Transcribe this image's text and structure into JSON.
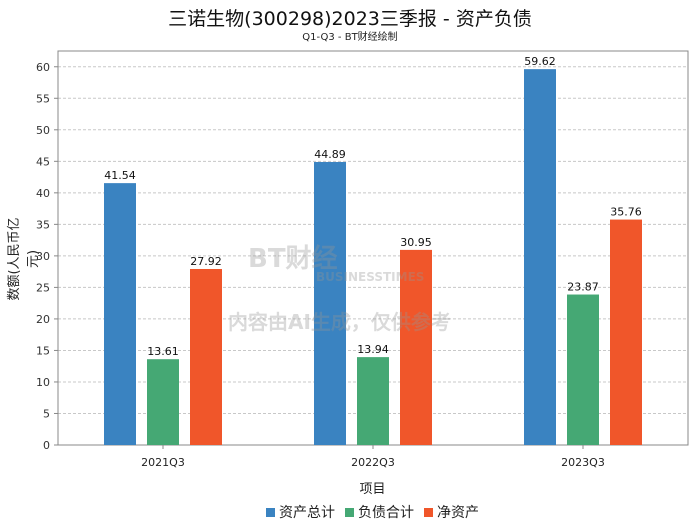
{
  "chart_data": {
    "type": "bar",
    "title": "三诺生物(300298)2023三季报 - 资产负债",
    "subtitle": "Q1-Q3 - BT财经绘制",
    "xlabel": "项目",
    "ylabel": "数额(人民币亿元)",
    "categories": [
      "2021Q3",
      "2022Q3",
      "2023Q3"
    ],
    "series": [
      {
        "name": "资产总计",
        "color": "#3a83c1",
        "values": [
          41.54,
          44.89,
          59.62
        ]
      },
      {
        "name": "负债合计",
        "color": "#45a874",
        "values": [
          13.61,
          13.94,
          23.87
        ]
      },
      {
        "name": "净资产",
        "color": "#f0562a",
        "values": [
          27.92,
          30.95,
          35.76
        ]
      }
    ],
    "ylim": [
      0,
      62.5
    ],
    "yticks": [
      0,
      5,
      10,
      15,
      20,
      25,
      30,
      35,
      40,
      45,
      50,
      55,
      60
    ],
    "grid": true,
    "legend": "bottom"
  },
  "watermark": {
    "logo": "BT财经",
    "logo_sub": "BUSINESSTIMES",
    "text": "内容由AI生成，仅供参考"
  }
}
